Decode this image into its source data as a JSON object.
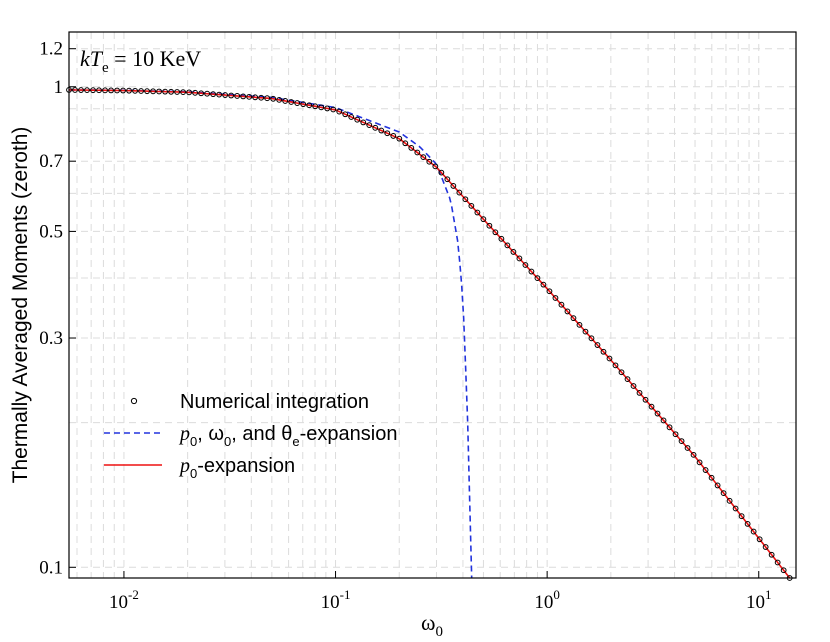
{
  "chart_data": {
    "type": "line",
    "annotation": {
      "prefix": "kT",
      "sub": "e",
      "rest": " = 10 KeV"
    },
    "xlabel": {
      "main": "ω",
      "sub": "0"
    },
    "ylabel": "Thermally Averaged Moments (zeroth)",
    "x_scale": "log",
    "y_scale": "log",
    "xlim": [
      0.0055,
      15
    ],
    "ylim": [
      0.095,
      1.3
    ],
    "x_ticks": [
      {
        "value": 0.01,
        "base": "10",
        "exp": "-2"
      },
      {
        "value": 0.1,
        "base": "10",
        "exp": "-1"
      },
      {
        "value": 1,
        "base": "10",
        "exp": "0"
      },
      {
        "value": 10,
        "base": "10",
        "exp": "1"
      }
    ],
    "y_ticks": [
      {
        "value": 0.1,
        "label": "0.1"
      },
      {
        "value": 0.3,
        "label": "0.3"
      },
      {
        "value": 0.5,
        "label": "0.5"
      },
      {
        "value": 0.7,
        "label": "0.7"
      },
      {
        "value": 1,
        "label": "1"
      },
      {
        "value": 1.2,
        "label": "1.2"
      }
    ],
    "grid": true,
    "grid_style": "dashed",
    "legend_position": "lower-left",
    "series": [
      {
        "key": "numerical",
        "style": "circles",
        "color": "#000000",
        "legend": {
          "parts": [
            {
              "t": "Numerical integration"
            }
          ]
        },
        "x": [
          0.0055,
          0.01,
          0.02,
          0.05,
          0.1,
          0.2,
          0.3,
          0.5,
          1,
          2,
          5,
          10,
          14
        ],
        "y": [
          0.985,
          0.982,
          0.974,
          0.945,
          0.895,
          0.78,
          0.68,
          0.53,
          0.38,
          0.27,
          0.17,
          0.115,
          0.095
        ]
      },
      {
        "key": "full-expansion",
        "style": "dashed",
        "color": "#2233dd",
        "legend": {
          "parts": [
            {
              "t": "p",
              "i": true
            },
            {
              "t": "0",
              "sub": true
            },
            {
              "t": ", ω"
            },
            {
              "t": "0",
              "sub": true
            },
            {
              "t": ", and θ"
            },
            {
              "t": "e",
              "sub": true
            },
            {
              "t": "-expansion"
            }
          ]
        },
        "x": [
          0.0055,
          0.01,
          0.02,
          0.05,
          0.1,
          0.2,
          0.25,
          0.3,
          0.35,
          0.38,
          0.4,
          0.42,
          0.43,
          0.44
        ],
        "y": [
          0.985,
          0.983,
          0.976,
          0.95,
          0.905,
          0.805,
          0.75,
          0.69,
          0.58,
          0.47,
          0.36,
          0.21,
          0.14,
          0.095
        ]
      },
      {
        "key": "p0-expansion",
        "style": "solid",
        "color": "#ee1111",
        "legend": {
          "parts": [
            {
              "t": "p",
              "i": true
            },
            {
              "t": "0",
              "sub": true
            },
            {
              "t": "-expansion"
            }
          ]
        },
        "x": [
          0.0055,
          0.01,
          0.02,
          0.05,
          0.1,
          0.2,
          0.3,
          0.5,
          1,
          2,
          5,
          10,
          14
        ],
        "y": [
          0.985,
          0.982,
          0.974,
          0.945,
          0.895,
          0.78,
          0.68,
          0.53,
          0.38,
          0.27,
          0.17,
          0.115,
          0.095
        ]
      }
    ]
  }
}
